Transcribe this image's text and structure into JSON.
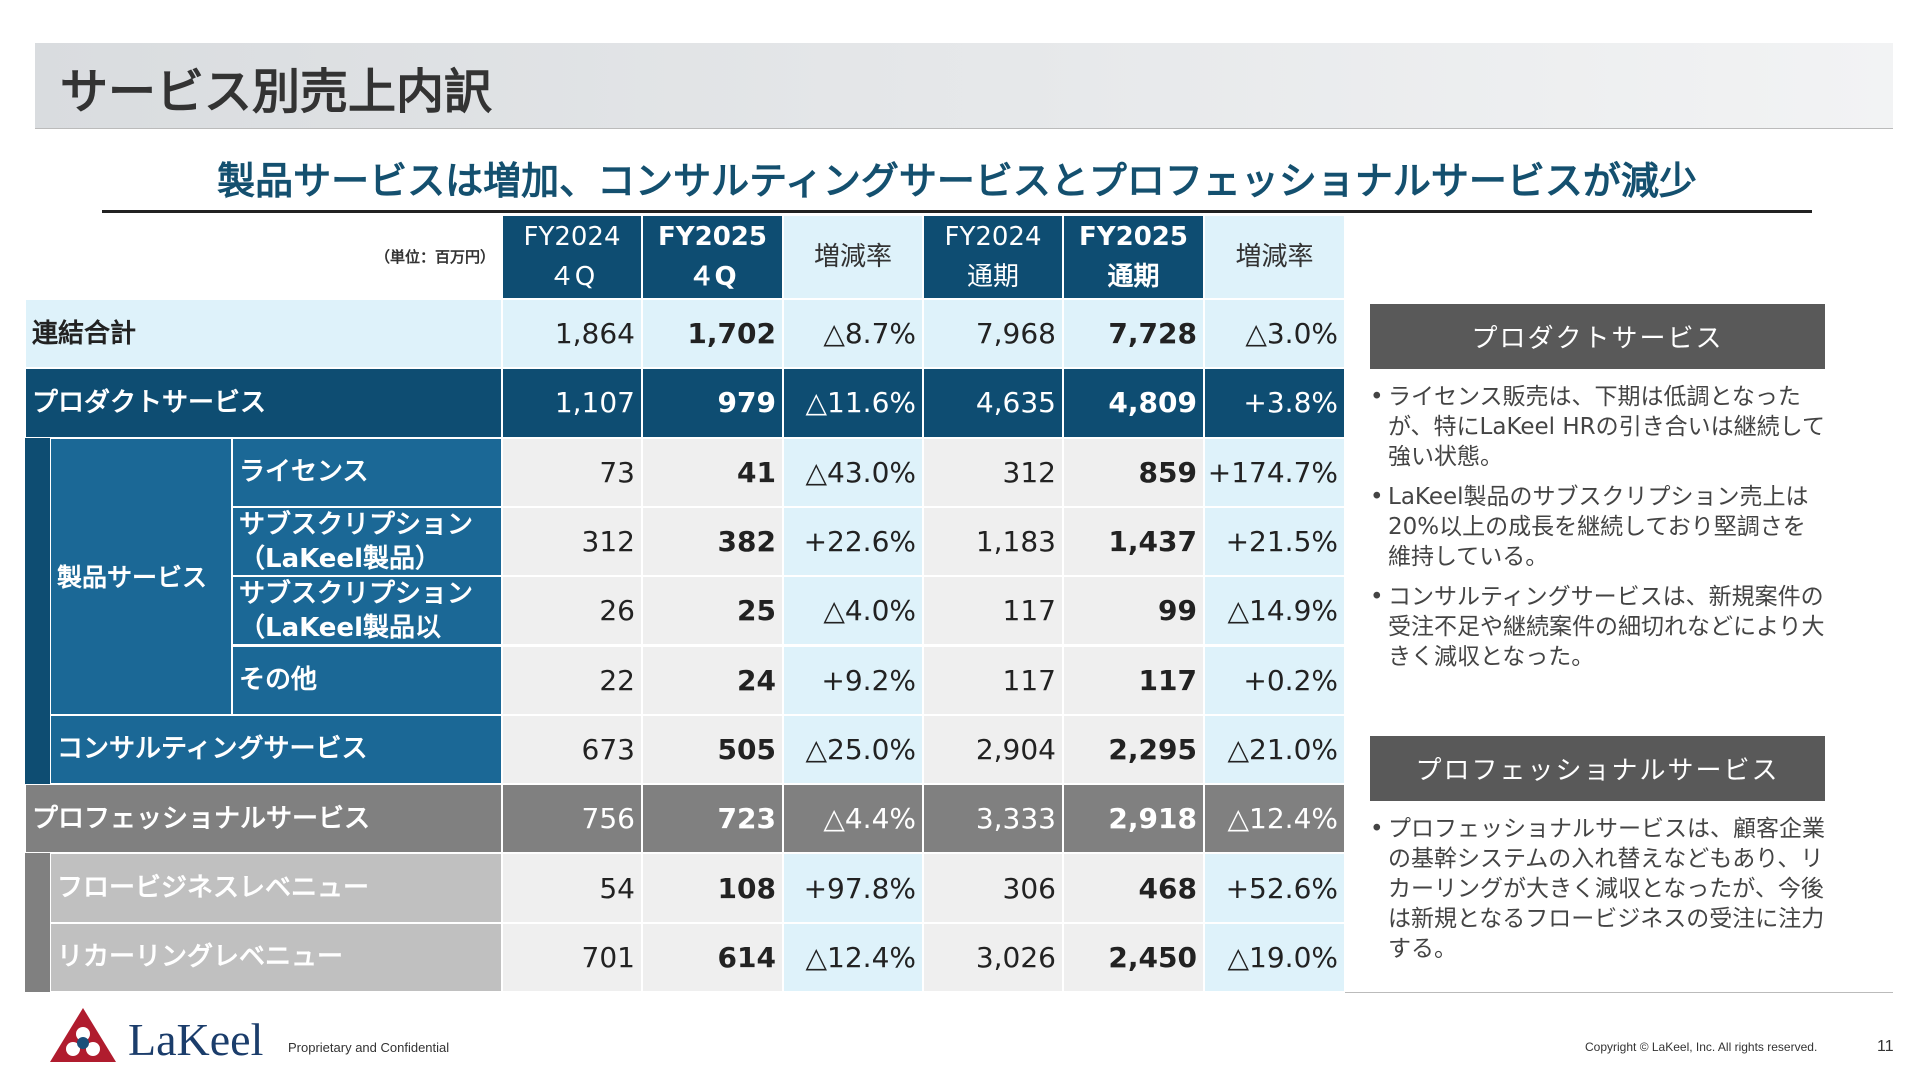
{
  "header": {
    "title": "サービス別売上内訳"
  },
  "subtitle": "製品サービスは増加、コンサルティングサービスとプロフェッショナルサービスが減少",
  "table": {
    "unit": "（単位：百万円）",
    "headers": [
      [
        "FY2024",
        "４Q"
      ],
      [
        "FY2025",
        "４Q"
      ],
      [
        "増減率"
      ],
      [
        "FY2024",
        "通期"
      ],
      [
        "FY2025",
        "通期"
      ],
      [
        "増減率"
      ]
    ],
    "group_label": "製品サービス",
    "rows": [
      {
        "label": "連結合計",
        "values": [
          "1,864",
          "1,702",
          "△8.7%",
          "7,968",
          "7,728",
          "△3.0%"
        ]
      },
      {
        "label": "プロダクトサービス",
        "values": [
          "1,107",
          "979",
          "△11.6%",
          "4,635",
          "4,809",
          "+3.8%"
        ]
      },
      {
        "label": "ライセンス",
        "values": [
          "73",
          "41",
          "△43.0%",
          "312",
          "859",
          "+174.7%"
        ]
      },
      {
        "label": "サブスクリプション（LaKeel製品）",
        "values": [
          "312",
          "382",
          "+22.6%",
          "1,183",
          "1,437",
          "+21.5%"
        ]
      },
      {
        "label": "サブスクリプション（LaKeel製品以",
        "values": [
          "26",
          "25",
          "△4.0%",
          "117",
          "99",
          "△14.9%"
        ]
      },
      {
        "label": "その他",
        "values": [
          "22",
          "24",
          "+9.2%",
          "117",
          "117",
          "+0.2%"
        ]
      },
      {
        "label": "コンサルティングサービス",
        "values": [
          "673",
          "505",
          "△25.0%",
          "2,904",
          "2,295",
          "△21.0%"
        ]
      },
      {
        "label": "プロフェッショナルサービス",
        "values": [
          "756",
          "723",
          "△4.4%",
          "3,333",
          "2,918",
          "△12.4%"
        ]
      },
      {
        "label": "フロービジネスレベニュー",
        "values": [
          "54",
          "108",
          "+97.8%",
          "306",
          "468",
          "+52.6%"
        ]
      },
      {
        "label": "リカーリングレベニュー",
        "values": [
          "701",
          "614",
          "△12.4%",
          "3,026",
          "2,450",
          "△19.0%"
        ]
      }
    ]
  },
  "panels": [
    {
      "title": "プロダクトサービス",
      "bullets": [
        "ライセンス販売は、下期は低調となったが、特にLaKeel HRの引き合いは継続して強い状態。",
        "LaKeel製品のサブスクリプション売上は20%以上の成長を継続しており堅調さを維持している。",
        "コンサルティングサービスは、新規案件の受注不足や継続案件の細切れなどにより大きく減収となった。"
      ]
    },
    {
      "title": "プロフェッショナルサービス",
      "bullets": [
        "プロフェッショナルサービスは、顧客企業の基幹システムの入れ替えなどもあり、リカーリングが大きく減収となったが、今後は新規となるフロービジネスの受注に注力する。"
      ]
    }
  ],
  "footer": {
    "logo": "LaKeel",
    "confidential": "Proprietary and Confidential",
    "copyright": "Copyright © LaKeel, Inc.  All rights reserved.",
    "page": "11"
  }
}
